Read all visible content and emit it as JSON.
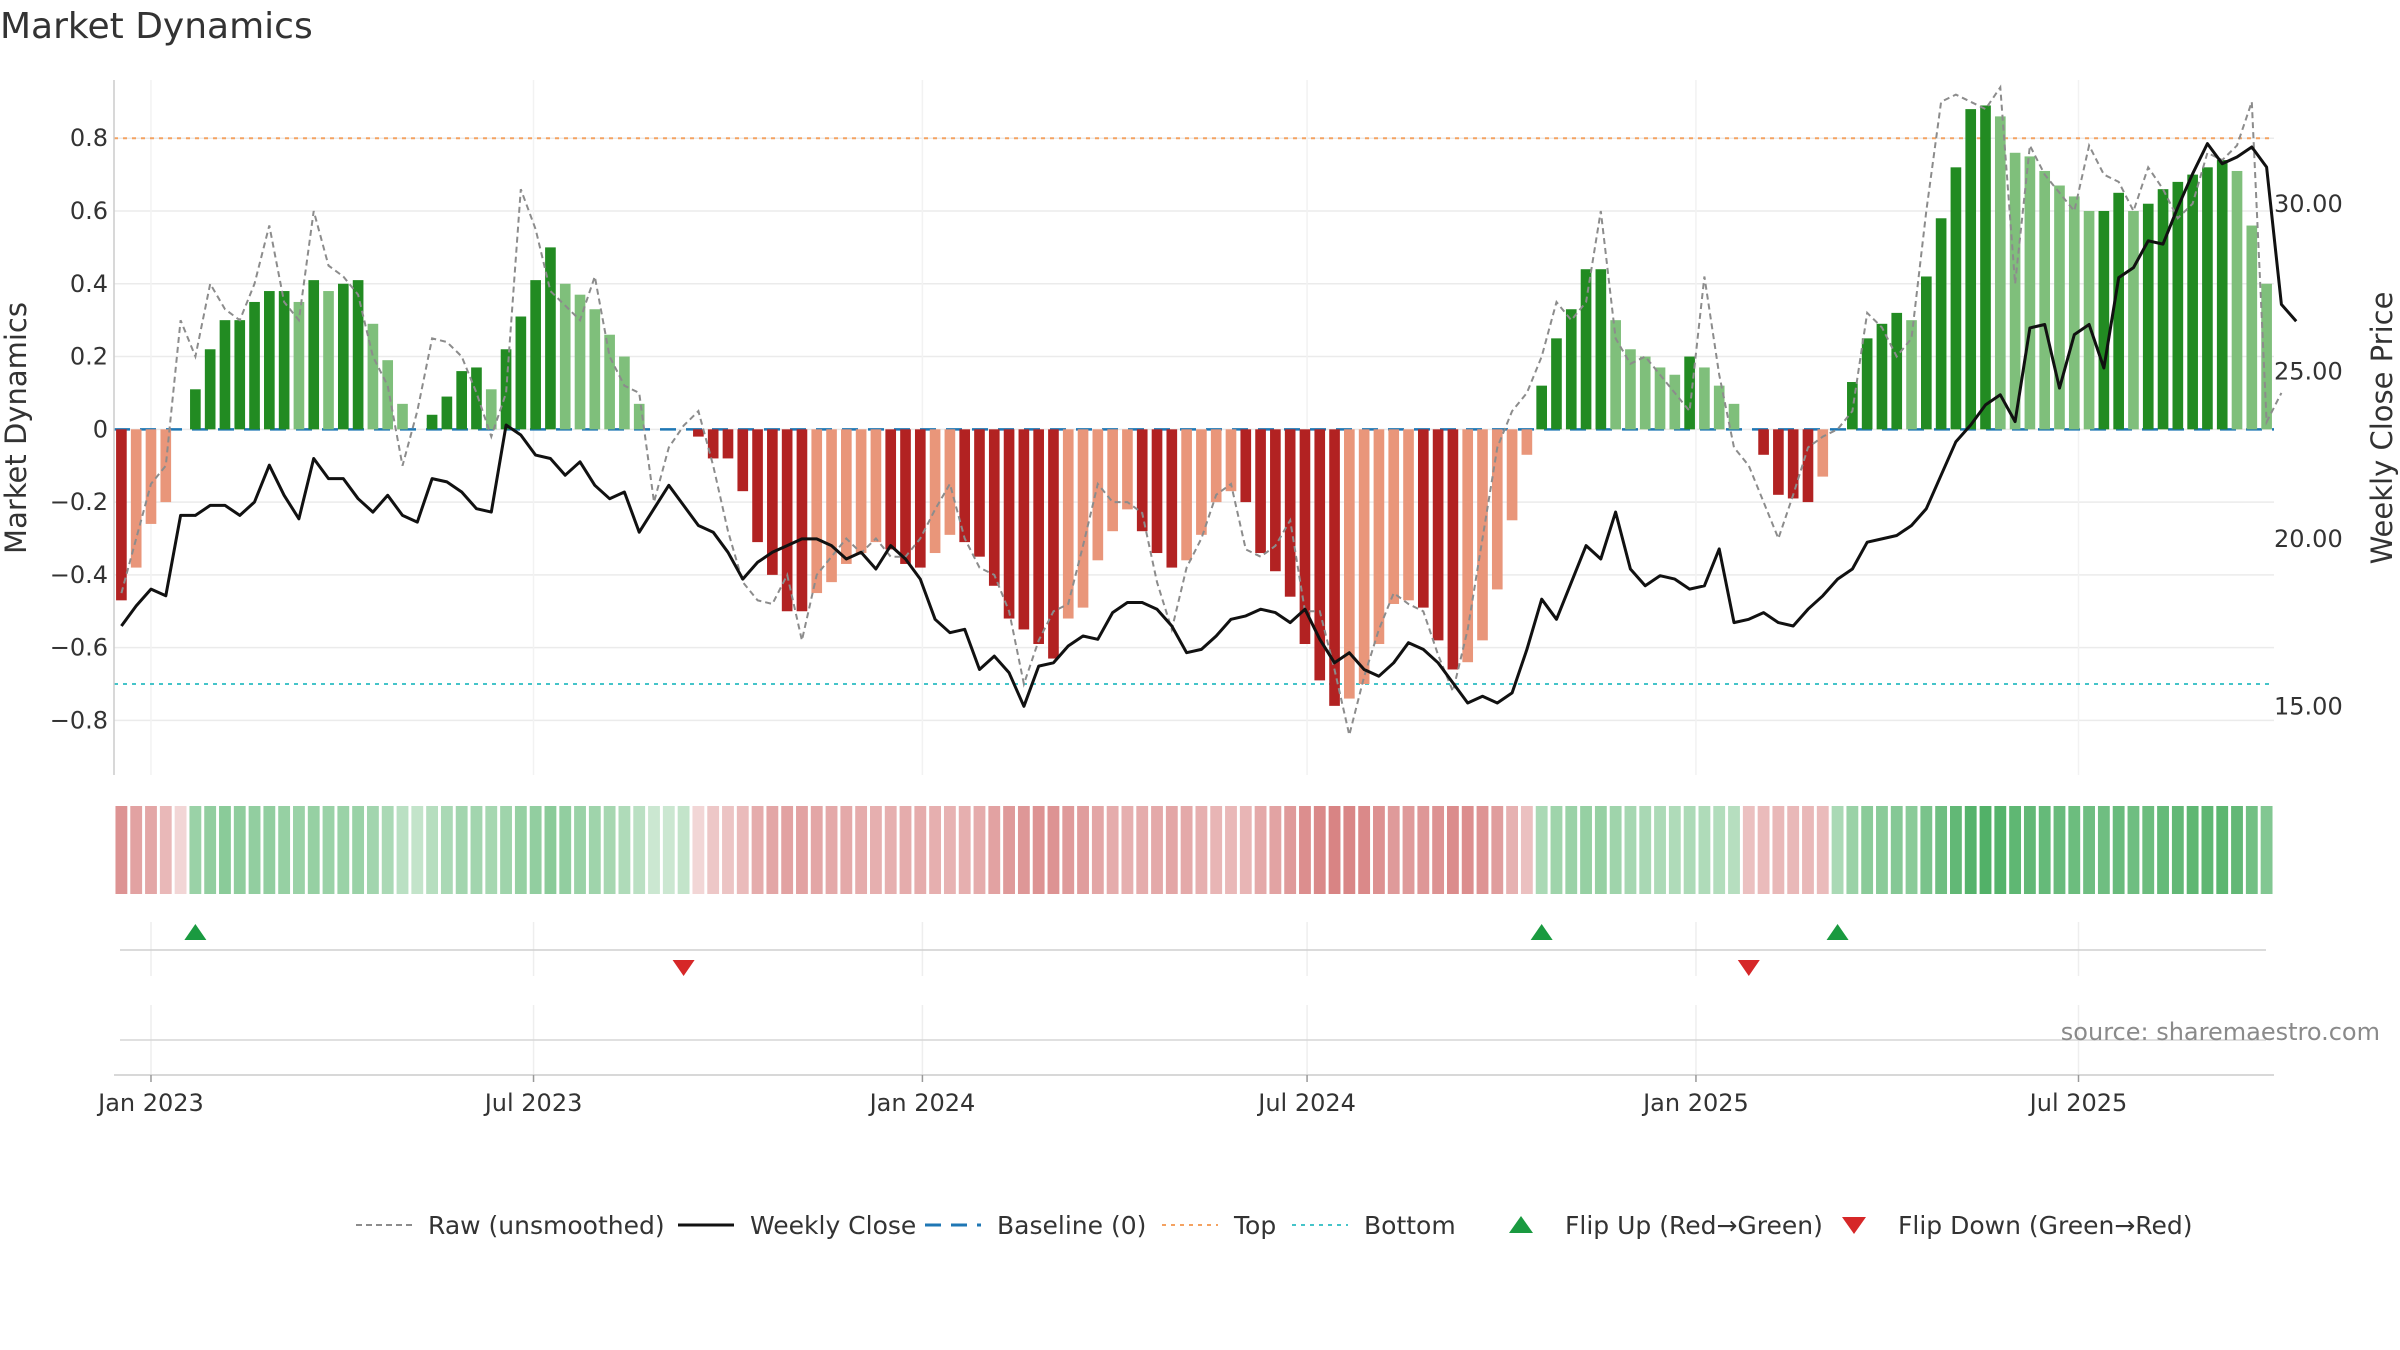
{
  "chart_data": {
    "type": "bar",
    "title": "Market Dynamics",
    "ylabel": "Market Dynamics",
    "y2label": "Weekly Close Price",
    "source": "source: sharemaestro.com",
    "ylim": [
      -0.95,
      0.96
    ],
    "y2lim": [
      12.95,
      33.7
    ],
    "yticks": [
      "0.8",
      "0.6",
      "0.4",
      "0.2",
      "0",
      "−0.2",
      "−0.4",
      "−0.6",
      "−0.8"
    ],
    "yticks_values": [
      0.8,
      0.6,
      0.4,
      0.2,
      0,
      -0.2,
      -0.4,
      -0.6,
      -0.8
    ],
    "y2ticks": [
      "30.00",
      "25.00",
      "20.00",
      "15.00"
    ],
    "y2ticks_values": [
      30,
      25,
      20,
      15
    ],
    "xticks": [
      {
        "label": "Jan 2023",
        "date": "2023-01-01"
      },
      {
        "label": "Jul 2023",
        "date": "2023-07-01"
      },
      {
        "label": "Jan 2024",
        "date": "2024-01-01"
      },
      {
        "label": "Jul 2024",
        "date": "2024-07-01"
      },
      {
        "label": "Jan 2025",
        "date": "2025-01-01"
      },
      {
        "label": "Jul 2025",
        "date": "2025-07-01"
      }
    ],
    "first_week": "2022-12-18",
    "week_step_days": 7,
    "levels": {
      "top": 0.8,
      "bottom": -0.7,
      "baseline": 0
    },
    "grid": true,
    "legend_position": "bottom",
    "colors": {
      "green_strong": "#228b22",
      "green_light": "#7fbf7b",
      "red_strong": "#b22222",
      "red_light": "#e9967a",
      "raw": "#8c8c8c",
      "close": "#111111",
      "baseline": "#1f77b4",
      "top": "#f4a261",
      "bottom": "#45c4c9",
      "flip_up": "#1a9a40",
      "flip_down": "#d62728"
    },
    "series": [
      {
        "name": "Market Dynamics",
        "values": [
          -0.47,
          -0.38,
          -0.26,
          -0.2,
          0,
          0.11,
          0.22,
          0.3,
          0.3,
          0.35,
          0.38,
          0.38,
          0.35,
          0.41,
          0.38,
          0.4,
          0.41,
          0.29,
          0.19,
          0.07,
          0,
          0.04,
          0.09,
          0.16,
          0.17,
          0.11,
          0.22,
          0.31,
          0.41,
          0.5,
          0.4,
          0.37,
          0.33,
          0.26,
          0.2,
          0.07,
          0,
          0,
          0,
          -0.02,
          -0.08,
          -0.08,
          -0.17,
          -0.31,
          -0.4,
          -0.5,
          -0.5,
          -0.45,
          -0.42,
          -0.37,
          -0.34,
          -0.31,
          -0.33,
          -0.37,
          -0.38,
          -0.34,
          -0.29,
          -0.31,
          -0.35,
          -0.43,
          -0.52,
          -0.55,
          -0.59,
          -0.63,
          -0.52,
          -0.49,
          -0.36,
          -0.28,
          -0.22,
          -0.28,
          -0.34,
          -0.38,
          -0.36,
          -0.29,
          -0.2,
          -0.17,
          -0.2,
          -0.34,
          -0.39,
          -0.46,
          -0.59,
          -0.69,
          -0.76,
          -0.74,
          -0.7,
          -0.59,
          -0.48,
          -0.47,
          -0.49,
          -0.58,
          -0.66,
          -0.64,
          -0.58,
          -0.44,
          -0.25,
          -0.07,
          0.12,
          0.25,
          0.33,
          0.44,
          0.44,
          0.3,
          0.22,
          0.2,
          0.17,
          0.15,
          0.2,
          0.17,
          0.12,
          0.07,
          0,
          -0.07,
          -0.18,
          -0.19,
          -0.2,
          -0.13,
          0,
          0.13,
          0.25,
          0.29,
          0.32,
          0.3,
          0.42,
          0.58,
          0.72,
          0.88,
          0.89,
          0.86,
          0.76,
          0.75,
          0.71,
          0.67,
          0.64,
          0.6,
          0.6,
          0.65,
          0.6,
          0.62,
          0.66,
          0.68,
          0.7,
          0.72,
          0.74,
          0.71,
          0.56,
          0.4
        ]
      },
      {
        "name": "Raw (unsmoothed)",
        "values": [
          -0.45,
          -0.3,
          -0.15,
          -0.1,
          0.3,
          0.2,
          0.4,
          0.33,
          0.3,
          0.4,
          0.56,
          0.35,
          0.3,
          0.6,
          0.45,
          0.42,
          0.37,
          0.2,
          0.12,
          -0.1,
          0.05,
          0.25,
          0.24,
          0.2,
          0.1,
          -0.02,
          0.1,
          0.66,
          0.55,
          0.38,
          0.34,
          0.3,
          0.42,
          0.2,
          0.12,
          0.1,
          -0.2,
          -0.05,
          0.01,
          0.05,
          -0.1,
          -0.28,
          -0.42,
          -0.47,
          -0.48,
          -0.4,
          -0.58,
          -0.4,
          -0.35,
          -0.3,
          -0.34,
          -0.3,
          -0.35,
          -0.35,
          -0.3,
          -0.22,
          -0.15,
          -0.3,
          -0.38,
          -0.4,
          -0.5,
          -0.7,
          -0.58,
          -0.5,
          -0.48,
          -0.32,
          -0.15,
          -0.2,
          -0.2,
          -0.23,
          -0.42,
          -0.55,
          -0.38,
          -0.3,
          -0.18,
          -0.15,
          -0.33,
          -0.35,
          -0.32,
          -0.25,
          -0.5,
          -0.5,
          -0.66,
          -0.84,
          -0.68,
          -0.55,
          -0.45,
          -0.48,
          -0.5,
          -0.62,
          -0.72,
          -0.55,
          -0.3,
          -0.05,
          0.05,
          0.1,
          0.2,
          0.35,
          0.3,
          0.35,
          0.6,
          0.25,
          0.18,
          0.2,
          0.15,
          0.1,
          0.05,
          0.42,
          0.15,
          -0.05,
          -0.1,
          -0.2,
          -0.3,
          -0.18,
          -0.05,
          -0.02,
          0,
          0.05,
          0.32,
          0.28,
          0.2,
          0.25,
          0.6,
          0.9,
          0.92,
          0.9,
          0.88,
          0.94,
          0.4,
          0.78,
          0.7,
          0.65,
          0.6,
          0.78,
          0.7,
          0.68,
          0.6,
          0.72,
          0.66,
          0.58,
          0.62,
          0.76,
          0.74,
          0.78,
          0.9,
          0.02,
          0.1
        ]
      },
      {
        "name": "Weekly Close",
        "values": [
          17.4,
          18.0,
          18.5,
          18.3,
          20.7,
          20.7,
          21.0,
          21.0,
          20.7,
          21.1,
          22.2,
          21.3,
          20.6,
          22.4,
          21.8,
          21.8,
          21.2,
          20.8,
          21.3,
          20.7,
          20.5,
          21.8,
          21.7,
          21.4,
          20.9,
          20.8,
          23.4,
          23.1,
          22.5,
          22.4,
          21.9,
          22.3,
          21.6,
          21.2,
          21.4,
          20.2,
          20.9,
          21.6,
          21.0,
          20.4,
          20.2,
          19.6,
          18.8,
          19.3,
          19.6,
          19.8,
          20.0,
          20.0,
          19.8,
          19.4,
          19.6,
          19.1,
          19.8,
          19.4,
          18.8,
          17.6,
          17.2,
          17.3,
          16.1,
          16.5,
          16.0,
          15.0,
          16.2,
          16.3,
          16.8,
          17.1,
          17.0,
          17.8,
          18.1,
          18.1,
          17.9,
          17.4,
          16.6,
          16.7,
          17.1,
          17.6,
          17.7,
          17.9,
          17.8,
          17.5,
          17.9,
          17.0,
          16.3,
          16.6,
          16.1,
          15.9,
          16.3,
          16.9,
          16.7,
          16.3,
          15.7,
          15.1,
          15.3,
          15.1,
          15.4,
          16.7,
          18.2,
          17.6,
          18.7,
          19.8,
          19.4,
          20.8,
          19.1,
          18.6,
          18.9,
          18.8,
          18.5,
          18.6,
          19.7,
          17.5,
          17.6,
          17.8,
          17.5,
          17.4,
          17.9,
          18.3,
          18.8,
          19.1,
          19.9,
          20.0,
          20.1,
          20.4,
          20.9,
          21.9,
          22.9,
          23.4,
          24.0,
          24.3,
          23.5,
          26.3,
          26.4,
          24.5,
          26.1,
          26.4,
          25.1,
          27.8,
          28.1,
          28.9,
          28.8,
          29.9,
          30.9,
          31.8,
          31.2,
          31.4,
          31.7,
          31.1,
          27.0,
          26.5
        ]
      }
    ],
    "heatstrip": {
      "values": [
        -0.55,
        -0.45,
        -0.42,
        -0.3,
        -0.1,
        0.45,
        0.5,
        0.55,
        0.52,
        0.5,
        0.5,
        0.48,
        0.45,
        0.48,
        0.45,
        0.45,
        0.45,
        0.4,
        0.35,
        0.25,
        0.2,
        0.28,
        0.35,
        0.4,
        0.4,
        0.38,
        0.42,
        0.48,
        0.5,
        0.55,
        0.5,
        0.45,
        0.42,
        0.38,
        0.32,
        0.25,
        0.15,
        0.15,
        0.2,
        -0.1,
        -0.2,
        -0.22,
        -0.28,
        -0.38,
        -0.42,
        -0.45,
        -0.45,
        -0.42,
        -0.4,
        -0.4,
        -0.38,
        -0.36,
        -0.36,
        -0.38,
        -0.38,
        -0.36,
        -0.34,
        -0.36,
        -0.38,
        -0.45,
        -0.5,
        -0.52,
        -0.55,
        -0.55,
        -0.5,
        -0.48,
        -0.42,
        -0.38,
        -0.36,
        -0.38,
        -0.4,
        -0.42,
        -0.4,
        -0.36,
        -0.32,
        -0.3,
        -0.32,
        -0.4,
        -0.44,
        -0.5,
        -0.58,
        -0.62,
        -0.65,
        -0.64,
        -0.62,
        -0.56,
        -0.5,
        -0.5,
        -0.52,
        -0.55,
        -0.6,
        -0.58,
        -0.54,
        -0.48,
        -0.35,
        -0.25,
        0.35,
        0.42,
        0.45,
        0.48,
        0.48,
        0.42,
        0.38,
        0.36,
        0.34,
        0.32,
        0.34,
        0.32,
        0.3,
        0.28,
        -0.25,
        -0.28,
        -0.3,
        -0.3,
        -0.3,
        -0.28,
        0.35,
        0.45,
        0.55,
        0.55,
        0.58,
        0.55,
        0.65,
        0.72,
        0.8,
        0.88,
        0.9,
        0.88,
        0.82,
        0.8,
        0.78,
        0.76,
        0.74,
        0.72,
        0.72,
        0.76,
        0.72,
        0.74,
        0.78,
        0.8,
        0.82,
        0.82,
        0.84,
        0.8,
        0.7,
        0.6
      ]
    },
    "flips": [
      {
        "type": "up",
        "index": 5
      },
      {
        "type": "down",
        "index": 38
      },
      {
        "type": "up",
        "index": 96
      },
      {
        "type": "down",
        "index": 110
      },
      {
        "type": "up",
        "index": 116
      }
    ],
    "legend": [
      {
        "label": "Raw (unsmoothed)",
        "style": "dash-gray"
      },
      {
        "label": "Weekly Close",
        "style": "solid-black"
      },
      {
        "label": "Baseline (0)",
        "style": "dash-blue"
      },
      {
        "label": "Top",
        "style": "dot-orange"
      },
      {
        "label": "Bottom",
        "style": "dot-cyan"
      },
      {
        "label": "Flip Up (Red→Green)",
        "style": "tri-up"
      },
      {
        "label": "Flip Down (Green→Red)",
        "style": "tri-down"
      }
    ]
  }
}
